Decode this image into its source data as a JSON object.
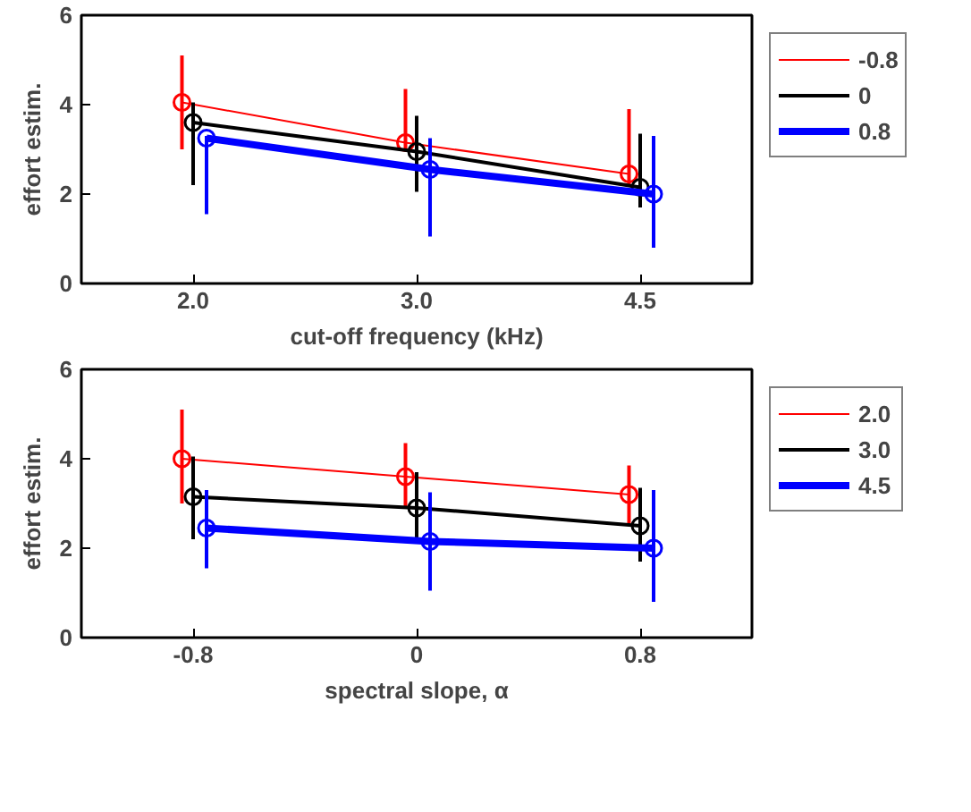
{
  "chart_data": [
    {
      "type": "line",
      "xlabel": "cut-off frequency (kHz)",
      "ylabel": "effort estim.",
      "categories": [
        "2.0",
        "3.0",
        "4.5"
      ],
      "ylim": [
        0,
        6
      ],
      "yticks": [
        0,
        2,
        4,
        6
      ],
      "legend": "top right",
      "marker": "circle",
      "grid": false,
      "series": [
        {
          "name": "-0.8",
          "color": "#ff0000",
          "values": [
            4.05,
            3.15,
            2.45
          ],
          "errors": [
            [
              3.0,
              5.1
            ],
            [
              3.0,
              4.35
            ],
            [
              2.2,
              3.9
            ]
          ]
        },
        {
          "name": "0",
          "color": "#000000",
          "values": [
            3.6,
            2.95,
            2.15
          ],
          "errors": [
            [
              2.2,
              4.05
            ],
            [
              2.05,
              3.75
            ],
            [
              1.7,
              3.35
            ]
          ]
        },
        {
          "name": "0.8",
          "color": "#0000ff",
          "values": [
            3.25,
            2.55,
            2.0
          ],
          "errors": [
            [
              1.55,
              3.3
            ],
            [
              1.05,
              3.25
            ],
            [
              0.8,
              3.3
            ]
          ]
        }
      ]
    },
    {
      "type": "line",
      "xlabel": "spectral slope, α",
      "ylabel": "effort estim.",
      "categories": [
        "-0.8",
        "0",
        "0.8"
      ],
      "ylim": [
        0,
        6
      ],
      "yticks": [
        0,
        2,
        4,
        6
      ],
      "legend": "top right",
      "marker": "circle",
      "grid": false,
      "series": [
        {
          "name": "2.0",
          "color": "#ff0000",
          "values": [
            4.0,
            3.6,
            3.2
          ],
          "errors": [
            [
              3.0,
              5.1
            ],
            [
              2.9,
              4.35
            ],
            [
              2.55,
              3.85
            ]
          ]
        },
        {
          "name": "3.0",
          "color": "#000000",
          "values": [
            3.15,
            2.9,
            2.5
          ],
          "errors": [
            [
              2.2,
              4.05
            ],
            [
              2.1,
              3.7
            ],
            [
              1.7,
              3.35
            ]
          ]
        },
        {
          "name": "4.5",
          "color": "#0000ff",
          "values": [
            2.45,
            2.15,
            2.0
          ],
          "errors": [
            [
              1.55,
              3.3
            ],
            [
              1.05,
              3.25
            ],
            [
              0.8,
              3.3
            ]
          ]
        }
      ]
    }
  ]
}
